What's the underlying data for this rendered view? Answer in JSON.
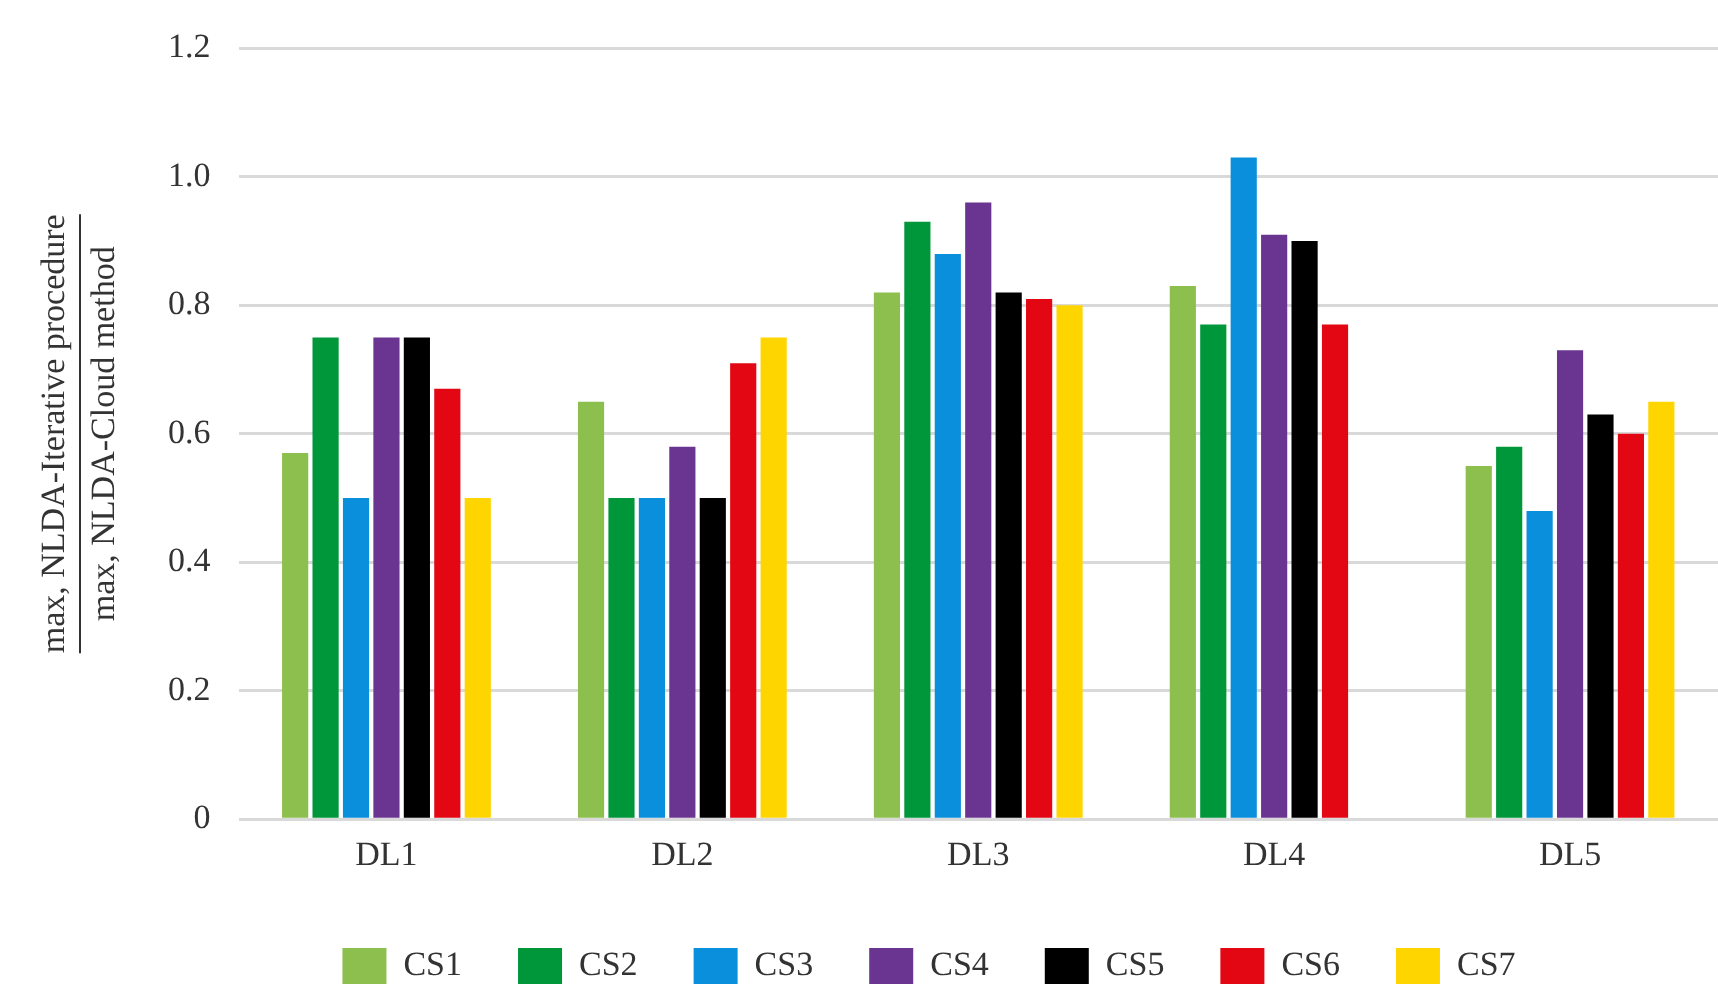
{
  "chart_data": {
    "type": "bar",
    "ylabel": "max, NLDA-Iterative procedure\nmax, NLDA-Cloud method",
    "categories": [
      "DL1",
      "DL2",
      "DL3",
      "DL4",
      "DL5"
    ],
    "series": [
      {
        "name": "CS1",
        "color": "#8cbf4d",
        "values": [
          0.57,
          0.65,
          0.82,
          0.83,
          0.55
        ]
      },
      {
        "name": "CS2",
        "color": "#00973a",
        "values": [
          0.75,
          0.5,
          0.93,
          0.77,
          0.58
        ]
      },
      {
        "name": "CS3",
        "color": "#0a8fdc",
        "values": [
          0.5,
          0.5,
          0.88,
          1.03,
          0.48
        ]
      },
      {
        "name": "CS4",
        "color": "#6a3590",
        "values": [
          0.75,
          0.58,
          0.96,
          0.91,
          0.73
        ]
      },
      {
        "name": "CS5",
        "color": "#000000",
        "values": [
          0.75,
          0.5,
          0.82,
          0.9,
          0.63
        ]
      },
      {
        "name": "CS6",
        "color": "#e30613",
        "values": [
          0.67,
          0.71,
          0.81,
          0.77,
          0.6
        ]
      },
      {
        "name": "CS7",
        "color": "#ffd500",
        "values": [
          0.5,
          0.75,
          0.8,
          null,
          0.65
        ]
      }
    ],
    "ylim": [
      0,
      1.2
    ],
    "yticks": [
      {
        "value": 0,
        "label": "0"
      },
      0.2,
      0.4,
      0.6,
      0.8,
      {
        "value": 1,
        "label": "1.0"
      },
      1.2
    ],
    "grid": "y",
    "legend": "bottom"
  }
}
